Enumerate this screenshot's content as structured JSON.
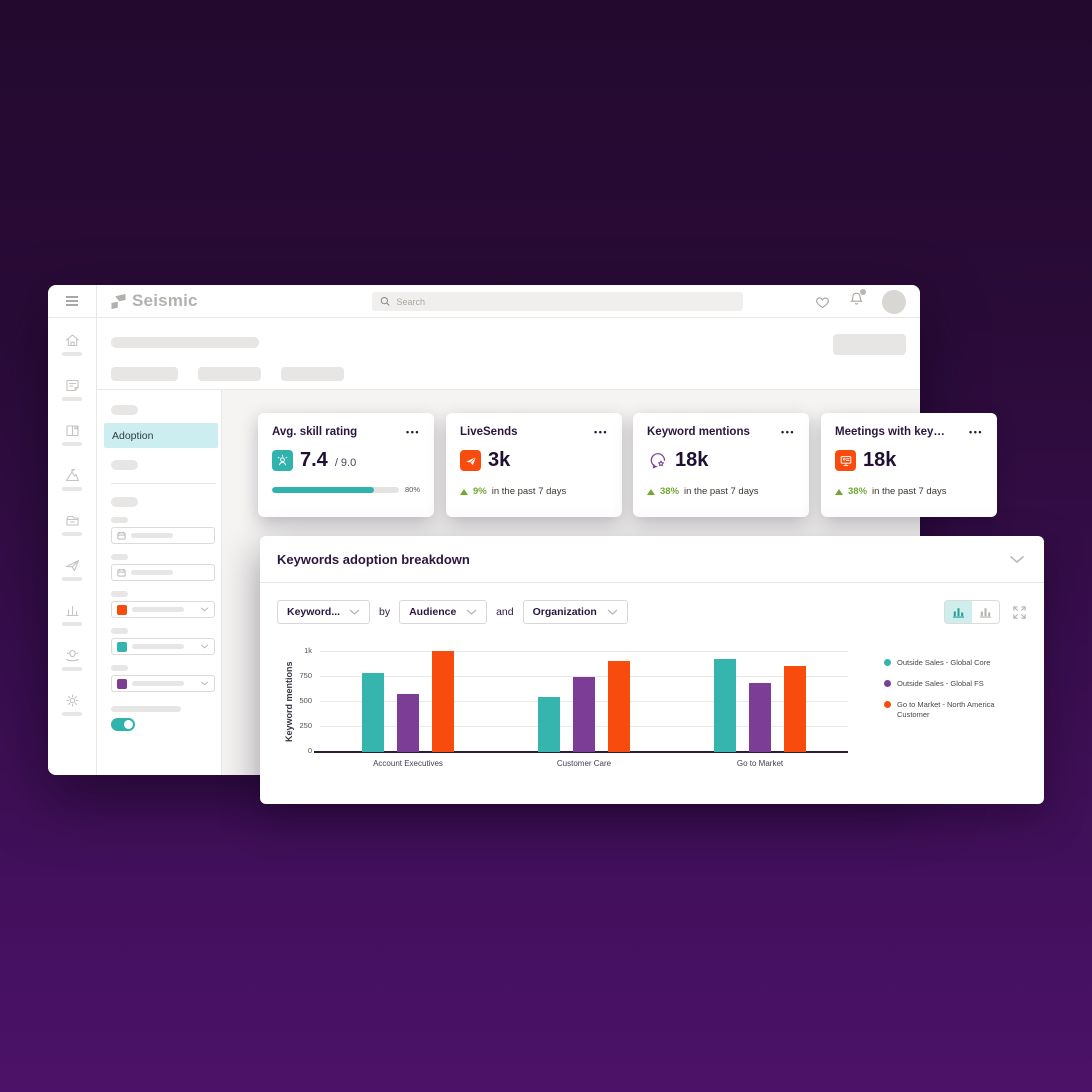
{
  "header": {
    "logo_text": "Seismic",
    "search_placeholder": "Search"
  },
  "subnav": {
    "active_item": "Adoption"
  },
  "cards": [
    {
      "title": "Avg. skill rating",
      "menu": "•••",
      "value": "7.4",
      "value_suffix": "/ 9.0",
      "progress_pct": 80,
      "progress_label": "80%"
    },
    {
      "title": "LiveSends",
      "menu": "•••",
      "value": "3k",
      "delta_pct": "9%",
      "delta_text": "in the past 7 days"
    },
    {
      "title": "Keyword mentions",
      "menu": "•••",
      "value": "18k",
      "delta_pct": "38%",
      "delta_text": "in the past 7 days"
    },
    {
      "title": "Meetings with key…",
      "menu": "•••",
      "value": "18k",
      "delta_pct": "38%",
      "delta_text": "in the past 7 days"
    }
  ],
  "panel": {
    "title": "Keywords adoption breakdown",
    "toolbar": {
      "dimension_select": "Keyword...",
      "conjunction_1": "by",
      "breakdown_select_1": "Audience",
      "conjunction_2": "and",
      "breakdown_select_2": "Organization"
    }
  },
  "chart_data": {
    "type": "bar",
    "title": "Keywords adoption breakdown",
    "ylabel": "Keyword mentions",
    "categories": [
      "Account Executives",
      "Customer Care",
      "Go to Market"
    ],
    "series": [
      {
        "name": "Outside Sales - Global Core",
        "color": "#35b5ae",
        "values": [
          790,
          550,
          935
        ]
      },
      {
        "name": "Outside Sales - Global FS",
        "color": "#7b3d96",
        "values": [
          580,
          750,
          695
        ]
      },
      {
        "name": "Go to Market - North America Customer",
        "color": "#f84c0f",
        "values": [
          1010,
          910,
          860
        ]
      }
    ],
    "yticks": [
      "0",
      "250",
      "500",
      "750",
      "1k"
    ],
    "ylim": [
      0,
      1000
    ],
    "grid": true,
    "legend_position": "right"
  },
  "colors": {
    "teal": "#35b5ae",
    "purple": "#7b3d96",
    "orange": "#f84c0f",
    "green": "#72a832",
    "active_nav_bg": "#cdeef0",
    "dark_text": "#2b1640"
  }
}
